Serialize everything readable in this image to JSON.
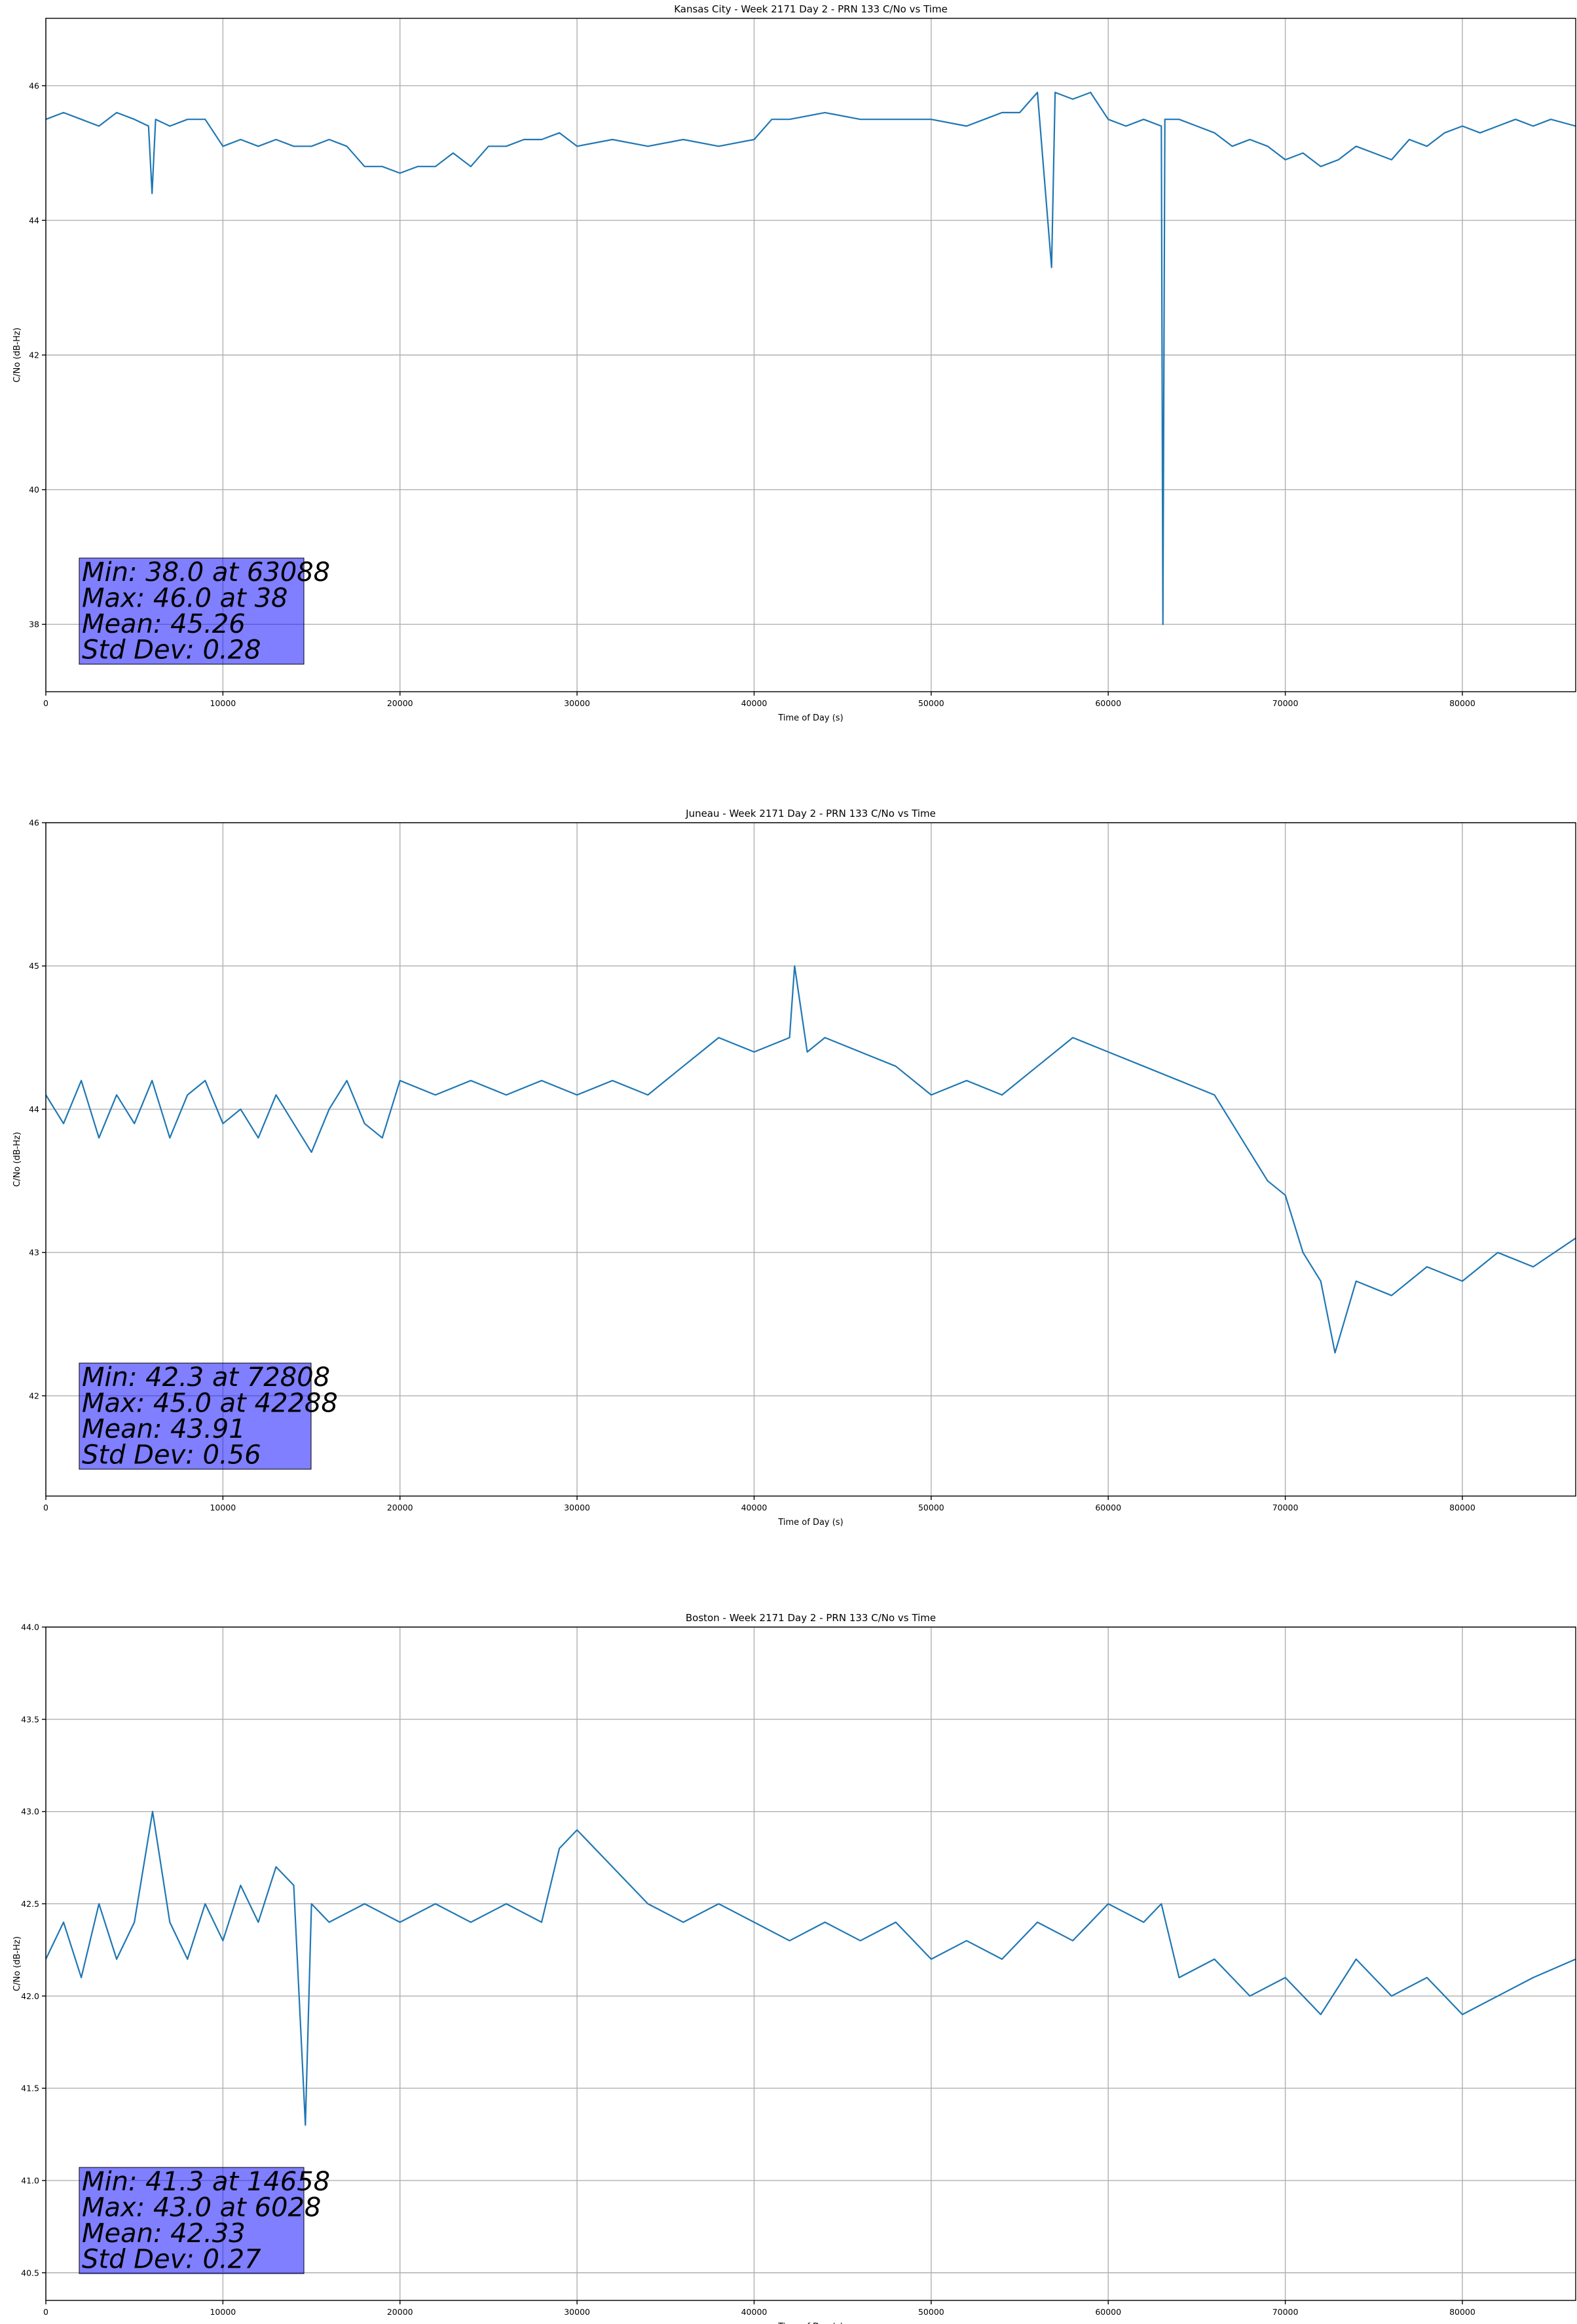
{
  "chart_data": [
    {
      "type": "line",
      "title": "Kansas City - Week 2171 Day 2 - PRN 133 C/No vs Time",
      "xlabel": "Time of Day (s)",
      "ylabel": "C/No (dB-Hz)",
      "xlim": [
        0,
        86400
      ],
      "ylim": [
        37.0,
        47.0
      ],
      "xticks": [
        0,
        10000,
        20000,
        30000,
        40000,
        50000,
        60000,
        70000,
        80000
      ],
      "yticks": [
        38,
        40,
        42,
        44,
        46
      ],
      "ytick_labels": [
        "38",
        "40",
        "42",
        "44",
        "46"
      ],
      "grid": true,
      "line_color": "#1f77b4",
      "stats_box_color": "#8080ff",
      "stats_lines": [
        "Min: 38.0 at 63088",
        "Max: 46.0 at 38",
        "Mean: 45.26",
        "Std Dev: 0.28"
      ],
      "series": [
        {
          "x": [
            0,
            1000,
            2000,
            3000,
            4000,
            5000,
            5800,
            6000,
            6200,
            7000,
            8000,
            9000,
            10000,
            11000,
            12000,
            13000,
            14000,
            15000,
            16000,
            17000,
            18000,
            19000,
            20000,
            21000,
            22000,
            23000,
            24000,
            25000,
            26000,
            27000,
            28000,
            29000,
            30000,
            32000,
            34000,
            36000,
            38000,
            40000,
            41000,
            42000,
            44000,
            46000,
            48000,
            50000,
            52000,
            53000,
            54000,
            55000,
            56000,
            56800,
            57000,
            58000,
            59000,
            60000,
            61000,
            62000,
            63000,
            63088,
            63200,
            64000,
            65000,
            66000,
            67000,
            68000,
            69000,
            70000,
            71000,
            72000,
            73000,
            74000,
            75000,
            76000,
            77000,
            78000,
            79000,
            80000,
            81000,
            82000,
            83000,
            84000,
            85000,
            86400
          ],
          "y": [
            45.5,
            45.6,
            45.5,
            45.4,
            45.6,
            45.5,
            45.4,
            44.4,
            45.5,
            45.4,
            45.5,
            45.5,
            45.1,
            45.2,
            45.1,
            45.2,
            45.1,
            45.1,
            45.2,
            45.1,
            44.8,
            44.8,
            44.7,
            44.8,
            44.8,
            45.0,
            44.8,
            45.1,
            45.1,
            45.2,
            45.2,
            45.3,
            45.1,
            45.2,
            45.1,
            45.2,
            45.1,
            45.2,
            45.5,
            45.5,
            45.6,
            45.5,
            45.5,
            45.5,
            45.4,
            45.5,
            45.6,
            45.6,
            45.9,
            43.3,
            45.9,
            45.8,
            45.9,
            45.5,
            45.4,
            45.5,
            45.4,
            38.0,
            45.5,
            45.5,
            45.4,
            45.3,
            45.1,
            45.2,
            45.1,
            44.9,
            45.0,
            44.8,
            44.9,
            45.1,
            45.0,
            44.9,
            45.2,
            45.1,
            45.3,
            45.4,
            45.3,
            45.4,
            45.5,
            45.4,
            45.5,
            45.4
          ]
        }
      ]
    },
    {
      "type": "line",
      "title": "Juneau - Week 2171 Day 2 - PRN 133 C/No vs Time",
      "xlabel": "Time of Day (s)",
      "ylabel": "C/No (dB-Hz)",
      "xlim": [
        0,
        86400
      ],
      "ylim": [
        41.3,
        46.0
      ],
      "xticks": [
        0,
        10000,
        20000,
        30000,
        40000,
        50000,
        60000,
        70000,
        80000
      ],
      "yticks": [
        42,
        43,
        44,
        45,
        46
      ],
      "ytick_labels": [
        "42",
        "43",
        "44",
        "45",
        "46"
      ],
      "grid": true,
      "line_color": "#1f77b4",
      "stats_box_color": "#8080ff",
      "stats_lines": [
        "Min: 42.3 at 72808",
        "Max: 45.0 at 42288",
        "Mean: 43.91",
        "Std Dev: 0.56"
      ],
      "series": [
        {
          "x": [
            0,
            1000,
            2000,
            3000,
            4000,
            5000,
            6000,
            7000,
            8000,
            9000,
            10000,
            11000,
            12000,
            13000,
            14000,
            15000,
            16000,
            17000,
            18000,
            19000,
            20000,
            22000,
            24000,
            26000,
            28000,
            30000,
            32000,
            34000,
            36000,
            37000,
            38000,
            40000,
            42000,
            42288,
            43000,
            44000,
            46000,
            48000,
            50000,
            52000,
            54000,
            56000,
            58000,
            60000,
            62000,
            64000,
            66000,
            67000,
            68000,
            69000,
            70000,
            71000,
            72000,
            72808,
            74000,
            76000,
            78000,
            80000,
            82000,
            84000,
            86400
          ],
          "y": [
            44.1,
            43.9,
            44.2,
            43.8,
            44.1,
            43.9,
            44.2,
            43.8,
            44.1,
            44.2,
            43.9,
            44.0,
            43.8,
            44.1,
            43.9,
            43.7,
            44.0,
            44.2,
            43.9,
            43.8,
            44.2,
            44.1,
            44.2,
            44.1,
            44.2,
            44.1,
            44.2,
            44.1,
            44.3,
            44.4,
            44.5,
            44.4,
            44.5,
            45.0,
            44.4,
            44.5,
            44.4,
            44.3,
            44.1,
            44.2,
            44.1,
            44.3,
            44.5,
            44.4,
            44.3,
            44.2,
            44.1,
            43.9,
            43.7,
            43.5,
            43.4,
            43.0,
            42.8,
            42.3,
            42.8,
            42.7,
            42.9,
            42.8,
            43.0,
            42.9,
            43.1
          ]
        }
      ]
    },
    {
      "type": "line",
      "title": "Boston - Week 2171 Day 2 - PRN 133 C/No vs Time",
      "xlabel": "Time of Day (s)",
      "ylabel": "C/No (dB-Hz)",
      "xlim": [
        0,
        86400
      ],
      "ylim": [
        40.35,
        44.0
      ],
      "xticks": [
        0,
        10000,
        20000,
        30000,
        40000,
        50000,
        60000,
        70000,
        80000
      ],
      "yticks": [
        40.5,
        41.0,
        41.5,
        42.0,
        42.5,
        43.0,
        43.5,
        44.0
      ],
      "ytick_labels": [
        "40.5",
        "41.0",
        "41.5",
        "42.0",
        "42.5",
        "43.0",
        "43.5",
        "44.0"
      ],
      "grid": true,
      "line_color": "#1f77b4",
      "stats_box_color": "#8080ff",
      "stats_lines": [
        "Min: 41.3 at 14658",
        "Max: 43.0 at 6028",
        "Mean: 42.33",
        "Std Dev: 0.27"
      ],
      "series": [
        {
          "x": [
            0,
            1000,
            2000,
            3000,
            4000,
            5000,
            6028,
            7000,
            8000,
            9000,
            10000,
            11000,
            12000,
            13000,
            14000,
            14658,
            15000,
            16000,
            18000,
            20000,
            22000,
            24000,
            26000,
            28000,
            29000,
            30000,
            32000,
            34000,
            36000,
            38000,
            40000,
            42000,
            44000,
            46000,
            48000,
            50000,
            52000,
            54000,
            56000,
            58000,
            60000,
            62000,
            63000,
            64000,
            66000,
            68000,
            70000,
            72000,
            74000,
            76000,
            78000,
            80000,
            82000,
            84000,
            86400
          ],
          "y": [
            42.2,
            42.4,
            42.1,
            42.5,
            42.2,
            42.4,
            43.0,
            42.4,
            42.2,
            42.5,
            42.3,
            42.6,
            42.4,
            42.7,
            42.6,
            41.3,
            42.5,
            42.4,
            42.5,
            42.4,
            42.5,
            42.4,
            42.5,
            42.4,
            42.8,
            42.9,
            42.7,
            42.5,
            42.4,
            42.5,
            42.4,
            42.3,
            42.4,
            42.3,
            42.4,
            42.2,
            42.3,
            42.2,
            42.4,
            42.3,
            42.5,
            42.4,
            42.5,
            42.1,
            42.2,
            42.0,
            42.1,
            41.9,
            42.2,
            42.0,
            42.1,
            41.9,
            42.0,
            42.1,
            42.2
          ]
        }
      ]
    }
  ]
}
